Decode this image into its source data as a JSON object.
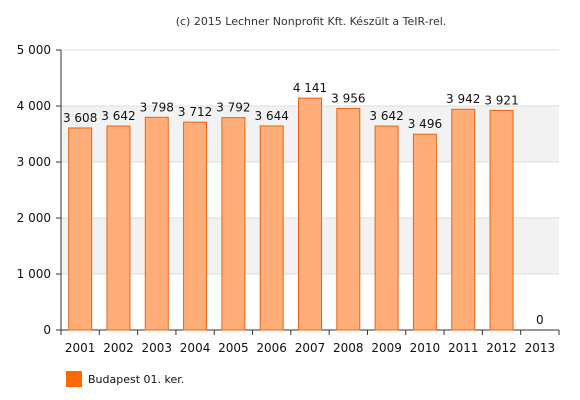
{
  "credit": "(c) 2015 Lechner Nonprofit Kft. Készült a TeIR-rel.",
  "chart_data": {
    "type": "bar",
    "categories": [
      "2001",
      "2002",
      "2003",
      "2004",
      "2005",
      "2006",
      "2007",
      "2008",
      "2009",
      "2010",
      "2011",
      "2012",
      "2013"
    ],
    "series": [
      {
        "name": "Budapest 01. ker.",
        "values": [
          3608,
          3642,
          3798,
          3712,
          3792,
          3644,
          4141,
          3956,
          3642,
          3496,
          3942,
          3921,
          0
        ],
        "value_labels": [
          "3 608",
          "3 642",
          "3 798",
          "3 712",
          "3 792",
          "3 644",
          "4 141",
          "3 956",
          "3 642",
          "3 496",
          "3 942",
          "3 921",
          "0"
        ]
      }
    ],
    "ylim": [
      0,
      5000
    ],
    "yticks": [
      0,
      1000,
      2000,
      3000,
      4000,
      5000
    ],
    "ytick_labels": [
      "0",
      "1 000",
      "2 000",
      "3 000",
      "4 000",
      "5 000"
    ],
    "grid": true,
    "legend_position": "bottom-left",
    "colors": {
      "bar_fill": "#ffae7a",
      "bar_stroke": "#e8650f",
      "legend_swatch": "#ff6a00",
      "band": "#f2f2f2",
      "gridline": "#dddddd",
      "axis": "#333333"
    }
  }
}
